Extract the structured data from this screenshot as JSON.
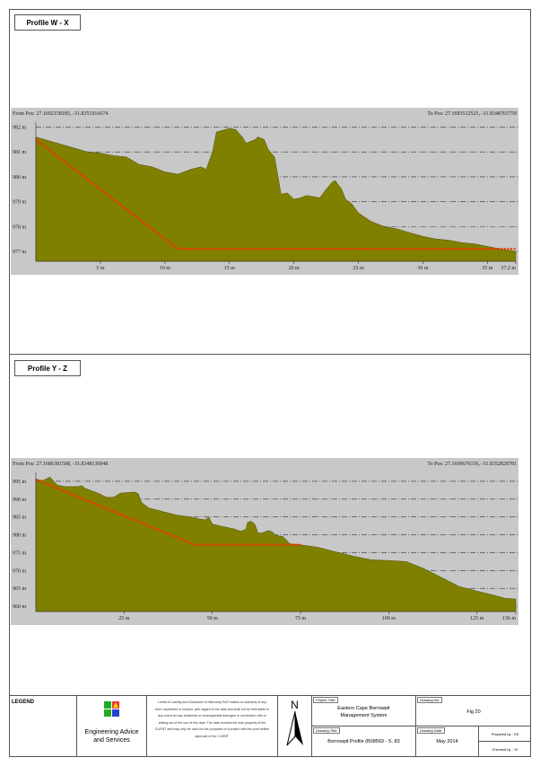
{
  "profile1": {
    "title": "Profile W - X"
  },
  "profile2": {
    "title": "Profile Y - Z"
  },
  "chart_data": [
    {
      "type": "area",
      "title": "Profile W - X",
      "from_label": "From Pos: 27.1692158185, -31.8351916674",
      "to_label": "To Pos: 27.1693512525, -31.8348765759",
      "xlim": [
        0,
        37.2
      ],
      "ylim": [
        976.6,
        982.2
      ],
      "y_ticks": [
        977,
        978,
        979,
        980,
        981,
        982
      ],
      "y_tick_labels": [
        "977 m",
        "978 m",
        "979 m",
        "980 m",
        "981 m",
        "982 m"
      ],
      "x_ticks": [
        5,
        10,
        15,
        20,
        25,
        30,
        35,
        37.2
      ],
      "x_tick_labels": [
        "5 m",
        "10 m",
        "15 m",
        "20 m",
        "25 m",
        "30 m",
        "35 m",
        "37.2 m"
      ],
      "terrain": [
        [
          0,
          981.6
        ],
        [
          2,
          981.3
        ],
        [
          4,
          981.0
        ],
        [
          5,
          980.95
        ],
        [
          6,
          980.85
        ],
        [
          7,
          980.8
        ],
        [
          8,
          980.5
        ],
        [
          9,
          980.4
        ],
        [
          10,
          980.2
        ],
        [
          11,
          980.1
        ],
        [
          12,
          980.3
        ],
        [
          12.8,
          980.4
        ],
        [
          13.2,
          980.3
        ],
        [
          13.7,
          981.0
        ],
        [
          14,
          981.8
        ],
        [
          15,
          981.95
        ],
        [
          15.5,
          981.9
        ],
        [
          16,
          981.6
        ],
        [
          16.3,
          981.35
        ],
        [
          17,
          981.5
        ],
        [
          17.2,
          981.6
        ],
        [
          17.7,
          981.5
        ],
        [
          18,
          981.1
        ],
        [
          18.5,
          980.8
        ],
        [
          19,
          979.3
        ],
        [
          19.5,
          979.35
        ],
        [
          20,
          979.1
        ],
        [
          20.5,
          979.15
        ],
        [
          21,
          979.25
        ],
        [
          21.5,
          979.2
        ],
        [
          22,
          979.15
        ],
        [
          22.5,
          979.5
        ],
        [
          23,
          979.8
        ],
        [
          23.2,
          979.85
        ],
        [
          23.7,
          979.5
        ],
        [
          24,
          979.1
        ],
        [
          24.5,
          978.9
        ],
        [
          25,
          978.55
        ],
        [
          26,
          978.2
        ],
        [
          27,
          978.0
        ],
        [
          28,
          977.9
        ],
        [
          29,
          977.75
        ],
        [
          30,
          977.6
        ],
        [
          31,
          977.5
        ],
        [
          32,
          977.45
        ],
        [
          33,
          977.35
        ],
        [
          34,
          977.3
        ],
        [
          35,
          977.2
        ],
        [
          36,
          977.1
        ],
        [
          37.2,
          977.0
        ]
      ],
      "design": [
        [
          0,
          981.5
        ],
        [
          11,
          977.1
        ],
        [
          37.2,
          977.1
        ]
      ]
    },
    {
      "type": "area",
      "title": "Profile Y - Z",
      "from_label": "From Pos: 27.1686381508, -31.8348130048",
      "to_label": "To Pos: 27.1699676156, -31.8352828781",
      "xlim": [
        0,
        136
      ],
      "ylim": [
        958.5,
        997.5
      ],
      "y_ticks": [
        960,
        965,
        970,
        975,
        980,
        985,
        990,
        995
      ],
      "y_tick_labels": [
        "960 m",
        "965 m",
        "970 m",
        "975 m",
        "980 m",
        "985 m",
        "990 m",
        "995 m"
      ],
      "x_ticks": [
        25,
        50,
        75,
        100,
        125,
        136
      ],
      "x_tick_labels": [
        "25 m",
        "50 m",
        "75 m",
        "100 m",
        "125 m",
        "136 m"
      ],
      "terrain": [
        [
          0,
          995.5
        ],
        [
          2,
          995.2
        ],
        [
          4,
          996.2
        ],
        [
          6,
          994
        ],
        [
          8,
          993.5
        ],
        [
          12,
          993.5
        ],
        [
          13,
          993.8
        ],
        [
          14,
          993
        ],
        [
          18,
          991.5
        ],
        [
          20,
          990.5
        ],
        [
          22,
          990.5
        ],
        [
          24,
          991.7
        ],
        [
          28,
          992
        ],
        [
          29,
          991.5
        ],
        [
          30,
          989
        ],
        [
          32,
          987.5
        ],
        [
          36,
          986.5
        ],
        [
          40,
          985.5
        ],
        [
          44,
          985
        ],
        [
          46,
          984.5
        ],
        [
          48,
          984.2
        ],
        [
          49,
          985
        ],
        [
          50,
          983
        ],
        [
          52,
          982.5
        ],
        [
          56,
          981.7
        ],
        [
          58,
          981
        ],
        [
          59.5,
          981.5
        ],
        [
          60,
          983.5
        ],
        [
          61,
          983.8
        ],
        [
          62,
          983
        ],
        [
          63,
          980.5
        ],
        [
          64,
          980.5
        ],
        [
          66,
          981.2
        ],
        [
          67,
          980.8
        ],
        [
          68,
          979.8
        ],
        [
          70,
          979.5
        ],
        [
          72,
          977.5
        ],
        [
          75,
          977.2
        ],
        [
          80,
          976.5
        ],
        [
          85,
          975.2
        ],
        [
          90,
          974
        ],
        [
          95,
          973
        ],
        [
          100,
          972.8
        ],
        [
          105,
          972.5
        ],
        [
          110,
          970.5
        ],
        [
          115,
          968
        ],
        [
          120,
          965.5
        ],
        [
          125,
          964.2
        ],
        [
          130,
          963
        ],
        [
          133,
          962.2
        ],
        [
          136,
          962
        ]
      ],
      "design": [
        [
          0,
          995.5
        ],
        [
          45,
          977.2
        ],
        [
          75,
          977.2
        ]
      ]
    }
  ],
  "colors": {
    "terrain": "#808000",
    "design": "#ff2a00",
    "plot_bg": "#c8c8c8"
  },
  "footer": {
    "legend": "LEGEND",
    "company": "Engineering Advice and Services",
    "disclaimer": "Limits of Liability and Disclaimer of Warranty EAS makes no warranty of any kind, expressed or implied, with regard to the data and shall not be held liable in any event for any incidental or consequential damages in connection with or arising out of the use of this data. The data remains the sole property of the CLIENT and may only be used for the purposes of a project with the prior written approval of the CLIENT.",
    "north": "N",
    "project_title_label": "Project Title:",
    "project_title": "Eastern Cape Borrowpit Management System",
    "drawing_title_label": "Drawing Title:",
    "drawing_title": "Borrowpit Profile (B08569 - S. 83",
    "drawing_no_label": "Drawing No:",
    "drawing_no": "Fig 20",
    "drawing_date_label": "Drawing Date:",
    "drawing_date": "May 2014",
    "prepared_by": "Prepared by : SS",
    "checked_by": "Checked by : JV"
  }
}
